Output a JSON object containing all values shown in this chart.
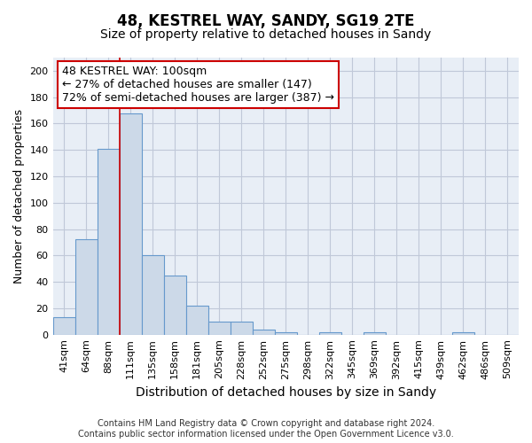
{
  "title": "48, KESTREL WAY, SANDY, SG19 2TE",
  "subtitle": "Size of property relative to detached houses in Sandy",
  "xlabel": "Distribution of detached houses by size in Sandy",
  "ylabel": "Number of detached properties",
  "bar_labels": [
    "41sqm",
    "64sqm",
    "88sqm",
    "111sqm",
    "135sqm",
    "158sqm",
    "181sqm",
    "205sqm",
    "228sqm",
    "252sqm",
    "275sqm",
    "298sqm",
    "322sqm",
    "345sqm",
    "369sqm",
    "392sqm",
    "415sqm",
    "439sqm",
    "462sqm",
    "486sqm",
    "509sqm"
  ],
  "bar_values": [
    13,
    72,
    141,
    168,
    60,
    45,
    22,
    10,
    10,
    4,
    2,
    0,
    2,
    0,
    2,
    0,
    0,
    0,
    2,
    0,
    0
  ],
  "bar_color": "#ccd9e8",
  "bar_edge_color": "#6699cc",
  "grid_color": "#c0c8d8",
  "background_color": "#e8eef6",
  "annotation_text": "48 KESTREL WAY: 100sqm\n← 27% of detached houses are smaller (147)\n72% of semi-detached houses are larger (387) →",
  "annotation_box_color": "#ffffff",
  "annotation_box_edge": "#cc0000",
  "red_line_x": 2.5,
  "ylim": [
    0,
    210
  ],
  "yticks": [
    0,
    20,
    40,
    60,
    80,
    100,
    120,
    140,
    160,
    180,
    200
  ],
  "footnote": "Contains HM Land Registry data © Crown copyright and database right 2024.\nContains public sector information licensed under the Open Government Licence v3.0.",
  "title_fontsize": 12,
  "subtitle_fontsize": 10,
  "xlabel_fontsize": 10,
  "ylabel_fontsize": 9,
  "tick_fontsize": 8,
  "annotation_fontsize": 9,
  "footnote_fontsize": 7
}
